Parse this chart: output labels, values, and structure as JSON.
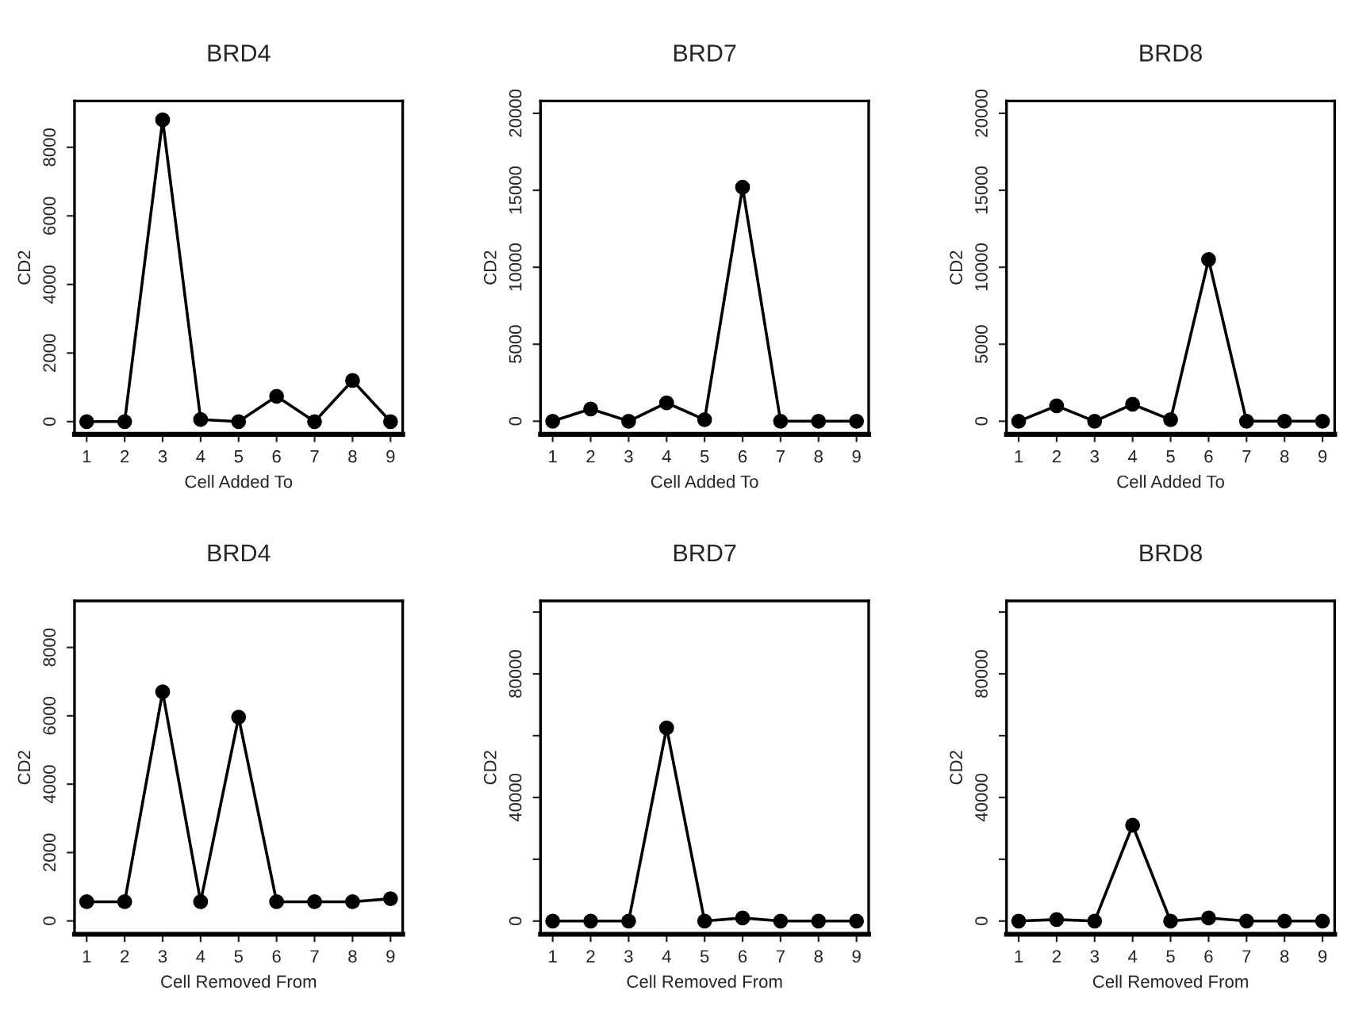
{
  "chart_data": [
    {
      "type": "line",
      "title": "BRD4",
      "xlabel": "Cell Added To",
      "ylabel": "CD2",
      "x": [
        1,
        2,
        3,
        4,
        5,
        6,
        7,
        8,
        9
      ],
      "values": [
        0,
        0,
        8800,
        60,
        0,
        740,
        0,
        1200,
        0
      ],
      "color": "#000000",
      "marker": "circle",
      "line_style": "solid",
      "xlim": [
        0.68,
        9.32
      ],
      "xticks": [
        1,
        2,
        3,
        4,
        5,
        6,
        7,
        8,
        9
      ],
      "ylim": [
        -370,
        9350
      ],
      "yticks": [
        0,
        2000,
        4000,
        6000,
        8000
      ],
      "grid": false,
      "legend": false
    },
    {
      "type": "line",
      "title": "BRD7",
      "xlabel": "Cell Added To",
      "ylabel": "CD2",
      "x": [
        1,
        2,
        3,
        4,
        5,
        6,
        7,
        8,
        9
      ],
      "values": [
        0,
        800,
        0,
        1200,
        100,
        15200,
        0,
        0,
        0
      ],
      "color": "#000000",
      "marker": "circle",
      "line_style": "solid",
      "xlim": [
        0.68,
        9.32
      ],
      "xticks": [
        1,
        2,
        3,
        4,
        5,
        6,
        7,
        8,
        9
      ],
      "ylim": [
        -850,
        20800
      ],
      "yticks": [
        0,
        5000,
        10000,
        15000,
        20000
      ],
      "grid": false,
      "legend": false
    },
    {
      "type": "line",
      "title": "BRD8",
      "xlabel": "Cell Added To",
      "ylabel": "CD2",
      "x": [
        1,
        2,
        3,
        4,
        5,
        6,
        7,
        8,
        9
      ],
      "values": [
        0,
        1000,
        0,
        1100,
        100,
        10500,
        0,
        0,
        0
      ],
      "color": "#000000",
      "marker": "circle",
      "line_style": "solid",
      "xlim": [
        0.68,
        9.32
      ],
      "xticks": [
        1,
        2,
        3,
        4,
        5,
        6,
        7,
        8,
        9
      ],
      "ylim": [
        -850,
        20800
      ],
      "yticks": [
        0,
        5000,
        10000,
        15000,
        20000
      ],
      "grid": false,
      "legend": false
    },
    {
      "type": "line",
      "title": "BRD4",
      "xlabel": "Cell Removed From",
      "ylabel": "CD2",
      "x": [
        1,
        2,
        3,
        4,
        5,
        6,
        7,
        8,
        9
      ],
      "values": [
        560,
        560,
        6700,
        560,
        5960,
        560,
        560,
        560,
        650
      ],
      "color": "#000000",
      "marker": "circle",
      "line_style": "solid",
      "xlim": [
        0.68,
        9.32
      ],
      "xticks": [
        1,
        2,
        3,
        4,
        5,
        6,
        7,
        8,
        9
      ],
      "ylim": [
        -390,
        9360
      ],
      "yticks": [
        0,
        2000,
        4000,
        6000,
        8000
      ],
      "grid": false,
      "legend": false
    },
    {
      "type": "line",
      "title": "BRD7",
      "xlabel": "Cell Removed From",
      "ylabel": "CD2",
      "x": [
        1,
        2,
        3,
        4,
        5,
        6,
        7,
        8,
        9
      ],
      "values": [
        0,
        0,
        0,
        62500,
        0,
        1000,
        0,
        0,
        0
      ],
      "color": "#000000",
      "marker": "circle",
      "line_style": "solid",
      "xlim": [
        0.68,
        9.32
      ],
      "xticks": [
        1,
        2,
        3,
        4,
        5,
        6,
        7,
        8,
        9
      ],
      "ylim": [
        -4270,
        103600
      ],
      "yticks": [
        0,
        {
          "value": 20000,
          "label": null
        },
        40000,
        {
          "value": 60000,
          "label": null
        },
        80000,
        {
          "value": 100000,
          "label": null
        }
      ],
      "grid": false,
      "legend": false
    },
    {
      "type": "line",
      "title": "BRD8",
      "xlabel": "Cell Removed From",
      "ylabel": "CD2",
      "x": [
        1,
        2,
        3,
        4,
        5,
        6,
        7,
        8,
        9
      ],
      "values": [
        0,
        500,
        0,
        31000,
        0,
        1000,
        0,
        0,
        0
      ],
      "color": "#000000",
      "marker": "circle",
      "line_style": "solid",
      "xlim": [
        0.68,
        9.32
      ],
      "xticks": [
        1,
        2,
        3,
        4,
        5,
        6,
        7,
        8,
        9
      ],
      "ylim": [
        -4270,
        103600
      ],
      "yticks": [
        0,
        {
          "value": 20000,
          "label": null
        },
        40000,
        {
          "value": 60000,
          "label": null
        },
        80000,
        {
          "value": 100000,
          "label": null
        }
      ],
      "grid": false,
      "legend": false
    }
  ]
}
